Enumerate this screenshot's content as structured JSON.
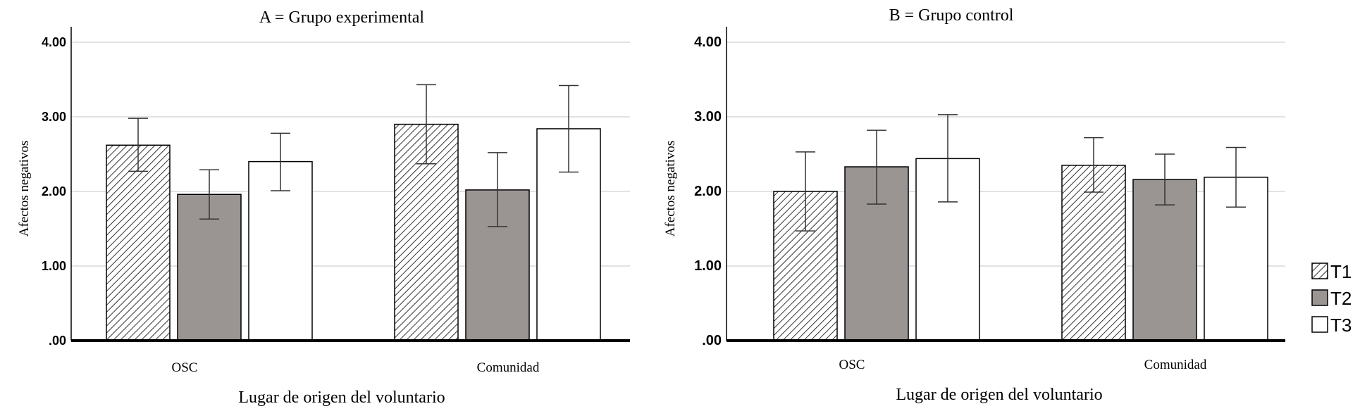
{
  "chart_data": [
    {
      "type": "bar",
      "title": "A = Grupo experimental",
      "xlabel": "Lugar de origen del voluntario",
      "ylabel": "Afectos  negativos",
      "categories": [
        "OSC",
        "Comunidad"
      ],
      "ylim": [
        0,
        4
      ],
      "yticks": [
        ".00",
        "1.00",
        "2.00",
        "3.00",
        "4.00"
      ],
      "grid": true,
      "series": [
        {
          "name": "T1",
          "values": [
            2.62,
            2.9
          ],
          "error_low": [
            2.27,
            2.37
          ],
          "error_high": [
            2.98,
            3.43
          ],
          "pattern": "hatched"
        },
        {
          "name": "T2",
          "values": [
            1.96,
            2.02
          ],
          "error_low": [
            1.63,
            1.53
          ],
          "error_high": [
            2.29,
            2.52
          ],
          "pattern": "gray"
        },
        {
          "name": "T3",
          "values": [
            2.4,
            2.84
          ],
          "error_low": [
            2.01,
            2.26
          ],
          "error_high": [
            2.78,
            3.42
          ],
          "pattern": "white"
        }
      ]
    },
    {
      "type": "bar",
      "title": "B = Grupo control",
      "xlabel": "Lugar de origen del voluntario",
      "ylabel": "Afectos negativos",
      "categories": [
        "OSC",
        "Comunidad"
      ],
      "ylim": [
        0,
        4
      ],
      "yticks": [
        ".00",
        "1.00",
        "2.00",
        "3.00",
        "4.00"
      ],
      "grid": true,
      "series": [
        {
          "name": "T1",
          "values": [
            2.0,
            2.35
          ],
          "error_low": [
            1.47,
            1.99
          ],
          "error_high": [
            2.53,
            2.72
          ],
          "pattern": "hatched"
        },
        {
          "name": "T2",
          "values": [
            2.33,
            2.16
          ],
          "error_low": [
            1.83,
            1.82
          ],
          "error_high": [
            2.82,
            2.5
          ],
          "pattern": "gray"
        },
        {
          "name": "T3",
          "values": [
            2.44,
            2.19
          ],
          "error_low": [
            1.86,
            1.79
          ],
          "error_high": [
            3.03,
            2.59
          ],
          "pattern": "white"
        }
      ]
    }
  ],
  "legend": {
    "position": "right",
    "items": [
      {
        "label": "T1",
        "pattern": "hatched"
      },
      {
        "label": "T2",
        "pattern": "gray"
      },
      {
        "label": "T3",
        "pattern": "white"
      }
    ]
  },
  "colors": {
    "gray_bar": "#9a9593",
    "hatch_line": "#333333",
    "grid": "#d9d9d9",
    "axis": "#000000",
    "error_bar": "#333333"
  }
}
